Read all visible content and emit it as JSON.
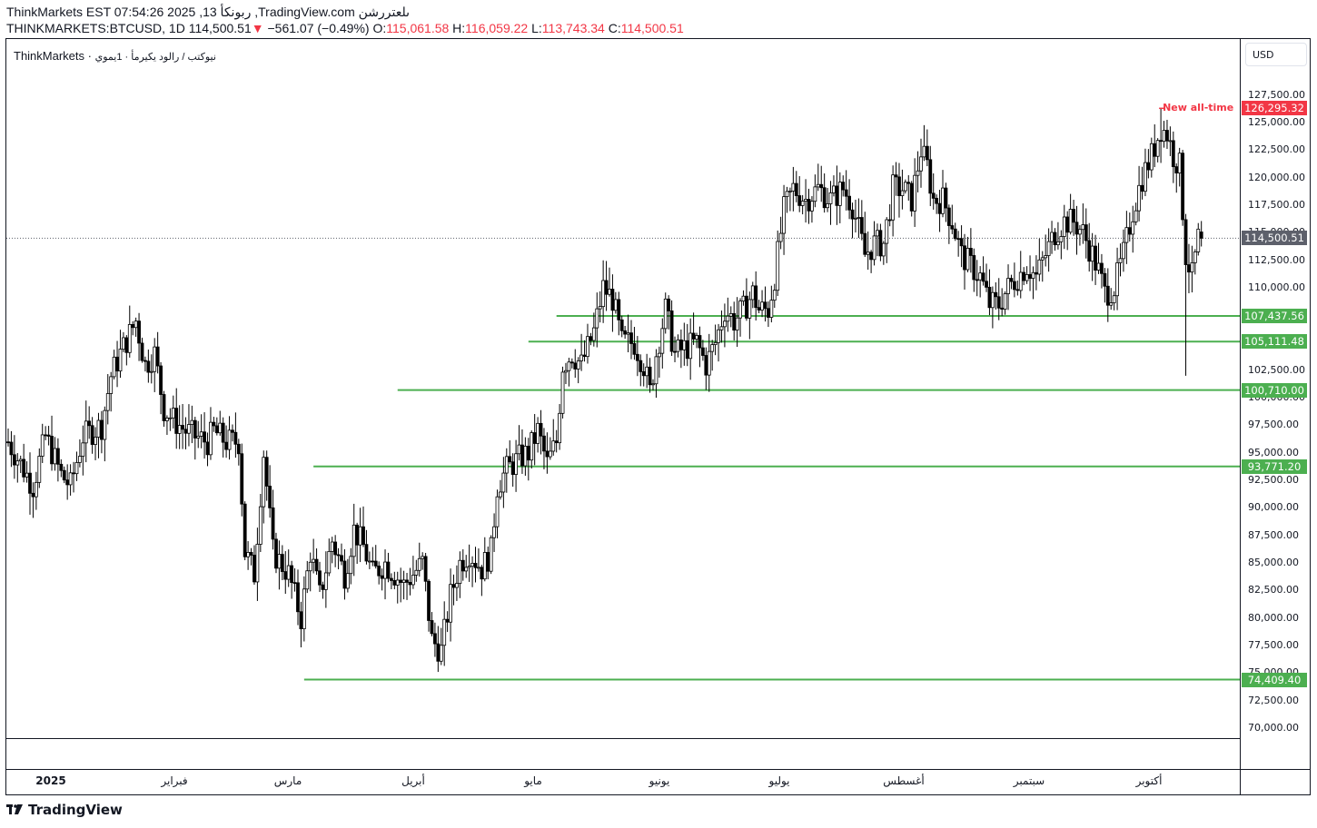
{
  "header": {
    "line1": "ThinkMarkets EST 07:54:26 2025 ,13 ربونكأ ,TradingView.com ىلعتررشن",
    "symbol": "THINKMARKETS:BTCUSD, 1D",
    "last": "114,500.51",
    "change_arrow": "▼",
    "change": "−561.07 (−0.49%)",
    "o_label": "O:",
    "o": "115,061.58",
    "h_label": "H:",
    "h": "116,059.22",
    "l_label": "L:",
    "l": "113,743.34",
    "c_label": "C:",
    "c": "114,500.51"
  },
  "legend": {
    "broker": "ThinkMarkets",
    "sep": " · ",
    "desc": "نيوكتب / رالود يكيرمأ · 1يموي"
  },
  "price_axis": {
    "currency_button": "USD",
    "ticks": [
      "127,500.00",
      "125,000.00",
      "122,500.00",
      "120,000.00",
      "117,500.00",
      "115,000.00",
      "112,500.00",
      "110,000.00",
      "107,500.00",
      "105,000.00",
      "102,500.00",
      "100,000.00",
      "97,500.00",
      "95,000.00",
      "92,500.00",
      "90,000.00",
      "87,500.00",
      "85,000.00",
      "82,500.00",
      "80,000.00",
      "77,500.00",
      "75,000.00",
      "72,500.00",
      "70,000.00"
    ],
    "last_price_badge": "114,500.51",
    "ath_badge": "126,295.32",
    "level_badges": [
      "107,437.56",
      "105,111.48",
      "100,710.00",
      "93,771.20",
      "74,409.40"
    ]
  },
  "annotation": {
    "ath_text": "New all-time"
  },
  "time_axis": {
    "labels": [
      "2025",
      "فبراير",
      "مارس",
      "أبريل",
      "مايو",
      "يونيو",
      "يوليو",
      "أغسطس",
      "سبتمبر",
      "أكتوبر"
    ]
  },
  "footer": {
    "brand": "TradingView"
  },
  "colors": {
    "up": "#ffffff",
    "down": "#000000",
    "outline": "#000000",
    "level": "#4caf50",
    "ath": "#f23645",
    "last_price": "#5d606b"
  },
  "chart_data": {
    "type": "candlestick",
    "title": "THINKMARKETS:BTCUSD, 1D",
    "xlabel": "",
    "ylabel": "USD",
    "ylim": [
      69000,
      130000
    ],
    "grid": false,
    "x_month_labels": [
      "2025",
      "فبراير",
      "مارس",
      "أبريل",
      "مايو",
      "يونيو",
      "يوليو",
      "أغسطس",
      "سبتمبر",
      "أكتوبر"
    ],
    "last_price": 114500.51,
    "all_time_high": 126295.32,
    "horizontal_levels": [
      {
        "price": 107437.56,
        "from_date_index": 176
      },
      {
        "price": 105111.48,
        "from_date_index": 167
      },
      {
        "price": 100710.0,
        "from_date_index": 125
      },
      {
        "price": 93771.2,
        "from_date_index": 98
      },
      {
        "price": 74409.4,
        "from_date_index": 95
      }
    ],
    "path_keypoints": [
      [
        0,
        96000
      ],
      [
        3,
        94500
      ],
      [
        8,
        92000
      ],
      [
        12,
        96500
      ],
      [
        17,
        93000
      ],
      [
        20,
        92000
      ],
      [
        24,
        96500
      ],
      [
        30,
        97500
      ],
      [
        33,
        102000
      ],
      [
        36,
        104000
      ],
      [
        41,
        107000
      ],
      [
        44,
        103000
      ],
      [
        47,
        104000
      ],
      [
        50,
        99000
      ],
      [
        53,
        98000
      ],
      [
        57,
        97000
      ],
      [
        60,
        96500
      ],
      [
        64,
        96000
      ],
      [
        66,
        97000
      ],
      [
        70,
        96000
      ],
      [
        74,
        96000
      ],
      [
        76,
        86000
      ],
      [
        79,
        84000
      ],
      [
        82,
        95000
      ],
      [
        85,
        86000
      ],
      [
        90,
        84000
      ],
      [
        94,
        80000
      ],
      [
        97,
        86000
      ],
      [
        100,
        82000
      ],
      [
        104,
        87000
      ],
      [
        108,
        84000
      ],
      [
        111,
        88000
      ],
      [
        114,
        86500
      ],
      [
        117,
        84000
      ],
      [
        121,
        85000
      ],
      [
        124,
        84000
      ],
      [
        127,
        83000
      ],
      [
        130,
        84000
      ],
      [
        133,
        85000
      ],
      [
        136,
        78000
      ],
      [
        139,
        77000
      ],
      [
        142,
        82000
      ],
      [
        145,
        85000
      ],
      [
        148,
        86000
      ],
      [
        152,
        84500
      ],
      [
        155,
        86000
      ],
      [
        157,
        92000
      ],
      [
        160,
        93500
      ],
      [
        164,
        94500
      ],
      [
        167,
        95000
      ],
      [
        170,
        97000
      ],
      [
        173,
        94000
      ],
      [
        176,
        96000
      ],
      [
        178,
        103000
      ],
      [
        181,
        104000
      ],
      [
        184,
        103000
      ],
      [
        188,
        106000
      ],
      [
        191,
        110000
      ],
      [
        194,
        109000
      ],
      [
        197,
        105000
      ],
      [
        201,
        105000
      ],
      [
        204,
        103000
      ],
      [
        206,
        100500
      ],
      [
        208,
        104000
      ],
      [
        211,
        108000
      ],
      [
        214,
        104000
      ],
      [
        217,
        104500
      ],
      [
        221,
        105000
      ],
      [
        224,
        103000
      ],
      [
        227,
        105000
      ],
      [
        230,
        108000
      ],
      [
        233,
        107000
      ],
      [
        236,
        108000
      ],
      [
        239,
        109500
      ],
      [
        241,
        108000
      ],
      [
        244,
        108000
      ],
      [
        246,
        111000
      ],
      [
        249,
        117000
      ],
      [
        252,
        119000
      ],
      [
        256,
        118000
      ],
      [
        260,
        119000
      ],
      [
        264,
        118000
      ],
      [
        268,
        119000
      ],
      [
        271,
        117500
      ],
      [
        275,
        113000
      ],
      [
        278,
        114000
      ],
      [
        281,
        114000
      ],
      [
        284,
        119000
      ],
      [
        287,
        119000
      ],
      [
        290,
        118000
      ],
      [
        293,
        122500
      ],
      [
        295,
        121000
      ],
      [
        297,
        118000
      ],
      [
        300,
        118000
      ],
      [
        303,
        116000
      ],
      [
        306,
        113000
      ],
      [
        309,
        112000
      ],
      [
        312,
        111000
      ],
      [
        315,
        108500
      ],
      [
        318,
        108500
      ],
      [
        321,
        110000
      ],
      [
        324,
        111000
      ],
      [
        327,
        112000
      ],
      [
        330,
        111000
      ],
      [
        333,
        113000
      ],
      [
        336,
        115000
      ],
      [
        339,
        116000
      ],
      [
        342,
        116000
      ],
      [
        345,
        115000
      ],
      [
        348,
        113000
      ],
      [
        350,
        111500
      ],
      [
        352,
        109500
      ],
      [
        355,
        110000
      ],
      [
        358,
        113000
      ],
      [
        361,
        117000
      ],
      [
        364,
        120000
      ],
      [
        367,
        122000
      ],
      [
        370,
        124500
      ],
      [
        372,
        124000
      ],
      [
        374,
        122000
      ],
      [
        376,
        121000
      ],
      [
        378,
        113000
      ],
      [
        380,
        111000
      ],
      [
        382,
        114500
      ],
      [
        383,
        114500
      ]
    ],
    "series": [
      {
        "name": "BTCUSD",
        "ohlc_note": "daily OHLC candles Jan–Oct 2025, approximated from visual path"
      }
    ]
  }
}
